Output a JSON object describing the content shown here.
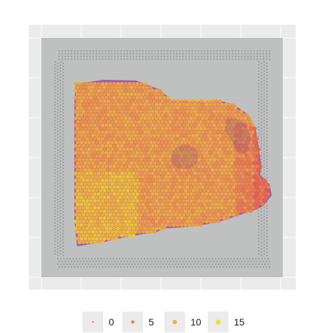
{
  "chart_data": {
    "type": "scatter",
    "title": "",
    "xlabel": "",
    "ylabel": "",
    "grid": true,
    "legend_placement": "bottom",
    "legend": {
      "title": "",
      "entries": [
        {
          "label": "0",
          "value": 0
        },
        {
          "label": "5",
          "value": 5
        },
        {
          "label": "10",
          "value": 10
        },
        {
          "label": "15",
          "value": 15
        }
      ]
    },
    "value_range": [
      0,
      15
    ],
    "palette": {
      "low": "#e8503a",
      "mid": "#f39c3d",
      "high": "#f0e31f",
      "tissue_under": "#a259b3",
      "panel_background": "#ebebeb",
      "grid": "#ffffff",
      "slide_background": "#bfc1c1",
      "capture_dots": "#9ea0a0"
    }
  }
}
